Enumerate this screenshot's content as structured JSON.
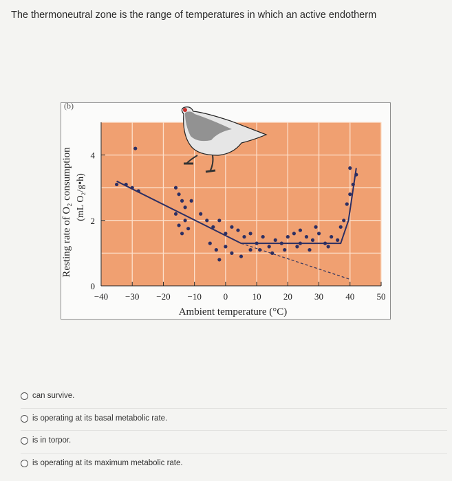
{
  "question": {
    "text": "The thermoneutral zone is the range of temperatures in which an active endotherm"
  },
  "figure": {
    "panel_label": "(b)",
    "bird_icon": "ptarmigan-illustration"
  },
  "chart_data": {
    "type": "scatter",
    "title": "",
    "xlabel": "Ambient temperature (°C)",
    "ylabel_line1": "Resting rate of O₂ consumption",
    "ylabel_line2": "(mL O₂/g•h)",
    "x_ticks": [
      "−40",
      "−30",
      "−20",
      "−10",
      "0",
      "10",
      "20",
      "30",
      "40",
      "50"
    ],
    "y_ticks": [
      "0",
      "2",
      "4"
    ],
    "xlim": [
      -40,
      50
    ],
    "ylim": [
      0,
      5
    ],
    "colors": {
      "plot_bg": "#f0a071",
      "grid": "#fde0cc",
      "points": "#2c2f63",
      "line": "#2c2f63"
    },
    "points": [
      [
        -29,
        4.2
      ],
      [
        -35,
        3.1
      ],
      [
        -32,
        3.1
      ],
      [
        -30,
        3.0
      ],
      [
        -28,
        2.9
      ],
      [
        -16,
        3.0
      ],
      [
        -15,
        2.8
      ],
      [
        -14,
        2.6
      ],
      [
        -13,
        2.4
      ],
      [
        -16,
        2.2
      ],
      [
        -13,
        2.0
      ],
      [
        -15,
        1.85
      ],
      [
        -12,
        1.75
      ],
      [
        -11,
        2.6
      ],
      [
        -14,
        1.6
      ],
      [
        -8,
        2.2
      ],
      [
        -6,
        2.0
      ],
      [
        -4,
        1.8
      ],
      [
        -2,
        2.0
      ],
      [
        0,
        1.6
      ],
      [
        -5,
        1.3
      ],
      [
        -3,
        1.1
      ],
      [
        2,
        1.8
      ],
      [
        4,
        1.7
      ],
      [
        6,
        1.5
      ],
      [
        8,
        1.6
      ],
      [
        10,
        1.3
      ],
      [
        12,
        1.5
      ],
      [
        14,
        1.2
      ],
      [
        16,
        1.4
      ],
      [
        18,
        1.3
      ],
      [
        20,
        1.5
      ],
      [
        22,
        1.6
      ],
      [
        24,
        1.3
      ],
      [
        26,
        1.5
      ],
      [
        28,
        1.4
      ],
      [
        30,
        1.6
      ],
      [
        32,
        1.3
      ],
      [
        34,
        1.5
      ],
      [
        36,
        1.4
      ],
      [
        37,
        1.8
      ],
      [
        38,
        2.0
      ],
      [
        39,
        2.5
      ],
      [
        40,
        2.8
      ],
      [
        41,
        3.1
      ],
      [
        40,
        3.6
      ],
      [
        42,
        3.4
      ],
      [
        2,
        1.0
      ],
      [
        5,
        0.9
      ],
      [
        8,
        1.1
      ],
      [
        0,
        1.2
      ],
      [
        -2,
        0.8
      ],
      [
        11,
        1.1
      ],
      [
        15,
        1.0
      ],
      [
        19,
        1.1
      ],
      [
        23,
        1.2
      ],
      [
        27,
        1.1
      ],
      [
        33,
        1.2
      ],
      [
        24,
        1.7
      ],
      [
        29,
        1.8
      ]
    ],
    "fit_line": [
      [
        -35,
        3.2
      ],
      [
        5,
        1.3
      ],
      [
        37,
        1.3
      ],
      [
        39.5,
        2.0
      ],
      [
        42,
        3.6
      ]
    ],
    "extrapolation": [
      [
        5,
        1.3
      ],
      [
        40,
        0.2
      ]
    ]
  },
  "options": [
    {
      "label": "can survive."
    },
    {
      "label": "is operating at its basal metabolic rate."
    },
    {
      "label": "is in torpor."
    },
    {
      "label": "is operating at its maximum metabolic rate."
    }
  ]
}
